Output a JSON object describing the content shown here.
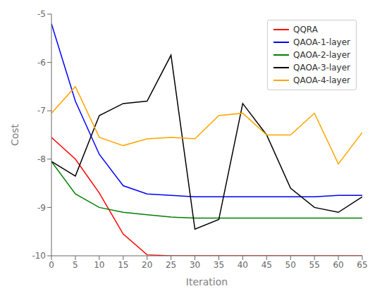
{
  "chart_data": {
    "type": "line",
    "xlabel": "Iteration",
    "ylabel": "Cost",
    "x": [
      0,
      5,
      10,
      15,
      20,
      25,
      30,
      35,
      40,
      45,
      50,
      55,
      60,
      65
    ],
    "series": [
      {
        "name": "QQRA",
        "color": "#FF0000",
        "values": [
          -7.55,
          -8.0,
          -8.7,
          -9.55,
          -9.98,
          -10.0,
          -10.0,
          -10.0,
          -10.0,
          -10.0,
          -10.0,
          -10.0,
          -10.0,
          -10.0
        ]
      },
      {
        "name": "QAOA-1-layer",
        "color": "#0000FF",
        "values": [
          -5.2,
          -6.8,
          -7.9,
          -8.55,
          -8.72,
          -8.75,
          -8.78,
          -8.78,
          -8.78,
          -8.78,
          -8.78,
          -8.78,
          -8.75,
          -8.75
        ]
      },
      {
        "name": "QAOA-2-layer",
        "color": "#008000",
        "values": [
          -8.05,
          -8.72,
          -9.0,
          -9.1,
          -9.15,
          -9.2,
          -9.22,
          -9.22,
          -9.22,
          -9.22,
          -9.22,
          -9.22,
          -9.22,
          -9.22
        ]
      },
      {
        "name": "QAOA-3-layer",
        "color": "#000000",
        "values": [
          -8.05,
          -8.35,
          -7.1,
          -6.85,
          -6.8,
          -5.85,
          -9.45,
          -9.25,
          -6.85,
          -7.5,
          -8.6,
          -9.0,
          -9.1,
          -8.78
        ]
      },
      {
        "name": "QAOA-4-layer",
        "color": "#FFA500",
        "values": [
          -7.05,
          -6.5,
          -7.55,
          -7.72,
          -7.58,
          -7.55,
          -7.58,
          -7.1,
          -7.05,
          -7.5,
          -7.5,
          -7.05,
          -8.1,
          -7.45
        ]
      }
    ],
    "xlim": [
      0,
      65
    ],
    "ylim": [
      -10,
      -5
    ],
    "xticks": [
      0,
      5,
      10,
      15,
      20,
      25,
      30,
      35,
      40,
      45,
      50,
      55,
      60,
      65
    ],
    "yticks": [
      -10,
      -9,
      -8,
      -7,
      -6,
      -5
    ],
    "legend": "upper right",
    "grid": false
  }
}
